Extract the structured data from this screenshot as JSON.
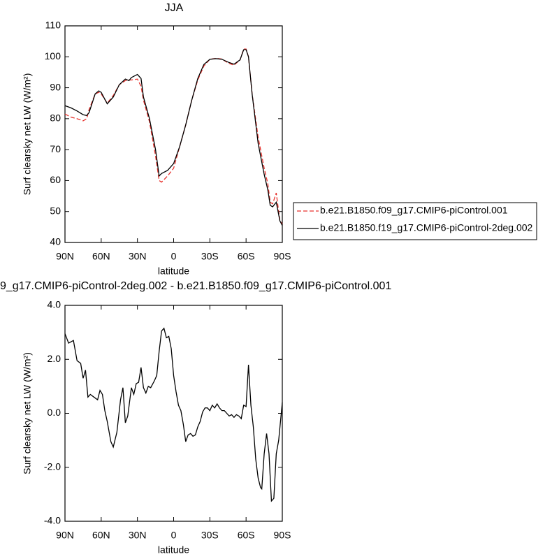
{
  "chart_data": [
    {
      "type": "line",
      "title": "JJA",
      "xlabel": "latitude",
      "ylabel": "Surf clearsky net LW (W/m²)",
      "x": [
        90,
        85,
        80,
        75,
        72,
        70,
        65,
        62,
        60,
        55,
        50,
        45,
        40,
        37,
        35,
        30,
        27,
        25,
        20,
        15,
        12,
        10,
        5,
        0,
        -5,
        -10,
        -15,
        -20,
        -25,
        -30,
        -35,
        -40,
        -45,
        -50,
        -55,
        -58,
        -60,
        -62,
        -65,
        -70,
        -75,
        -78,
        -80,
        -82,
        -85,
        -88,
        -90
      ],
      "series": [
        {
          "name": "b.e21.B1850.f09_g17.CMIP6-piControl.001",
          "color": "#e8322d",
          "dash": true,
          "values": [
            81.5,
            80.5,
            80,
            79.3,
            80,
            83,
            88,
            88.5,
            88,
            85,
            87.5,
            91,
            92.3,
            92.5,
            92.5,
            92.8,
            90.5,
            86,
            79,
            68,
            60,
            59.5,
            61.5,
            64,
            71,
            78,
            86,
            92.5,
            97,
            99.2,
            99.5,
            99.3,
            98,
            97.3,
            99,
            102.5,
            102.5,
            100,
            88,
            74,
            64,
            59,
            53,
            52.5,
            56,
            47,
            46
          ]
        },
        {
          "name": "b.e21.B1850.f19_g17.CMIP6-piControl-2deg.002",
          "color": "#000000",
          "dash": false,
          "values": [
            84.2,
            83.5,
            82.5,
            81.3,
            81,
            82,
            88,
            89,
            88.5,
            84.8,
            87,
            91,
            92.8,
            92.3,
            93.3,
            94.3,
            93,
            87,
            80,
            70,
            61.5,
            62.3,
            63.3,
            65.5,
            71,
            78,
            86,
            93,
            97.5,
            99.2,
            99.4,
            99.2,
            98.3,
            97.6,
            99,
            102.3,
            102.3,
            100,
            88,
            72,
            62,
            57,
            52,
            51.5,
            53,
            47,
            45.5
          ]
        }
      ],
      "xlim": [
        90,
        -90
      ],
      "xticks": [
        {
          "value": 90,
          "label": "90N"
        },
        {
          "value": 60,
          "label": "60N"
        },
        {
          "value": 30,
          "label": "30N"
        },
        0,
        {
          "value": -30,
          "label": "30S"
        },
        {
          "value": -60,
          "label": "60S"
        },
        {
          "value": -90,
          "label": "90S"
        }
      ],
      "ylim": [
        40,
        110
      ],
      "yticks": [
        40,
        50,
        60,
        70,
        80,
        90,
        100,
        110
      ],
      "grid": false
    },
    {
      "type": "line",
      "title": "9_g17.CMIP6-piControl-2deg.002 - b.e21.B1850.f09_g17.CMIP6-piControl.001",
      "xlabel": "latitude",
      "ylabel": "Surf clearsky net LW (W/m²)",
      "x": [
        90,
        87,
        83,
        80,
        77,
        75,
        73,
        71,
        69,
        66,
        63,
        61,
        59,
        57,
        55,
        52,
        50,
        47,
        44,
        42,
        40,
        38,
        35,
        33,
        31,
        29,
        27,
        25,
        23,
        21,
        19,
        16,
        14,
        12,
        10,
        8,
        6,
        4,
        2,
        0,
        -2,
        -4,
        -6,
        -8,
        -10,
        -12,
        -14,
        -16,
        -18,
        -20,
        -22,
        -24,
        -26,
        -28,
        -30,
        -32,
        -34,
        -36,
        -38,
        -40,
        -42,
        -44,
        -46,
        -48,
        -50,
        -52,
        -54,
        -56,
        -58,
        -60,
        -62,
        -64,
        -66,
        -68,
        -70,
        -72,
        -73,
        -75,
        -77,
        -79,
        -81,
        -83,
        -85,
        -87,
        -90
      ],
      "series": [
        {
          "color": "#000000",
          "dash": false,
          "values": [
            2.95,
            2.6,
            2.7,
            1.95,
            1.85,
            1.3,
            1.6,
            0.6,
            0.7,
            0.6,
            0.5,
            0.85,
            0.7,
            0.1,
            -0.3,
            -1.05,
            -1.25,
            -0.7,
            0.5,
            0.95,
            -0.35,
            -0.1,
            0.95,
            0.7,
            1.1,
            1.15,
            1.7,
            0.95,
            0.75,
            1.0,
            0.95,
            1.2,
            1.4,
            2.3,
            3.05,
            3.15,
            2.8,
            2.85,
            2.4,
            1.4,
            0.8,
            0.3,
            0.1,
            -0.4,
            -1.05,
            -0.8,
            -0.75,
            -0.85,
            -0.8,
            -0.5,
            -0.3,
            0.05,
            0.2,
            0.2,
            0.1,
            0.3,
            0.2,
            0.35,
            0.2,
            0.1,
            0.1,
            0.0,
            -0.1,
            -0.05,
            -0.15,
            -0.05,
            -0.1,
            -0.2,
            0.3,
            0.25,
            1.8,
            0.3,
            -0.5,
            -1.7,
            -2.4,
            -2.75,
            -2.8,
            -1.5,
            -0.75,
            -1.5,
            -3.25,
            -3.15,
            -1.5,
            -1.0,
            0.4
          ]
        }
      ],
      "xlim": [
        90,
        -90
      ],
      "xticks": [
        {
          "value": 90,
          "label": "90N"
        },
        {
          "value": 60,
          "label": "60N"
        },
        {
          "value": 30,
          "label": "30N"
        },
        0,
        {
          "value": -30,
          "label": "30S"
        },
        {
          "value": -60,
          "label": "60S"
        },
        {
          "value": -90,
          "label": "90S"
        }
      ],
      "ylim": [
        -4,
        4
      ],
      "yticks": [
        {
          "value": -4,
          "label": "-4.0"
        },
        {
          "value": -2,
          "label": "-2.0"
        },
        {
          "value": 0,
          "label": "0.0"
        },
        {
          "value": 2,
          "label": "2.0"
        },
        {
          "value": 4,
          "label": "4.0"
        }
      ],
      "grid": false
    }
  ]
}
